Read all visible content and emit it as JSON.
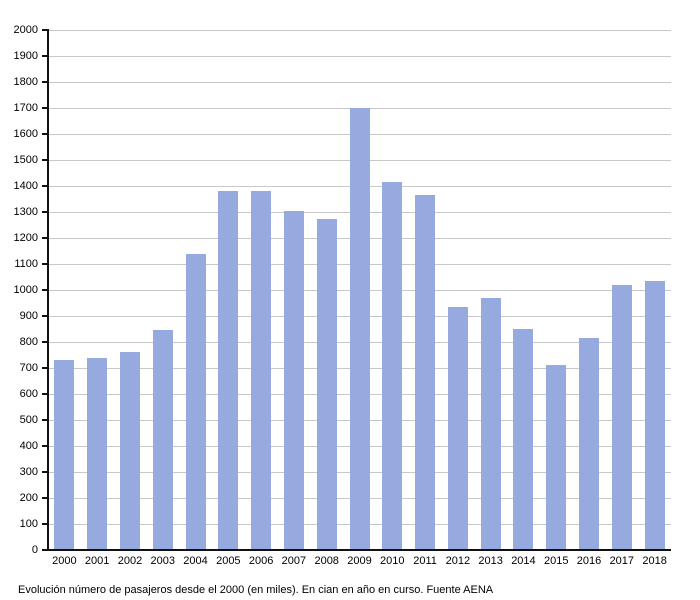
{
  "chart_data": {
    "type": "bar",
    "title": "",
    "xlabel": "",
    "ylabel": "",
    "categories": [
      "2000",
      "2001",
      "2002",
      "2003",
      "2004",
      "2005",
      "2006",
      "2007",
      "2008",
      "2009",
      "2010",
      "2011",
      "2012",
      "2013",
      "2014",
      "2015",
      "2016",
      "2017",
      "2018"
    ],
    "values": [
      730,
      740,
      760,
      845,
      1140,
      1380,
      1380,
      1305,
      1275,
      1700,
      1415,
      1365,
      935,
      970,
      850,
      710,
      815,
      1020,
      1035
    ],
    "ylim": [
      0,
      2000
    ],
    "ytick_step": 100,
    "grid": "on",
    "legend_position": "none",
    "bar_color": "#97aadf",
    "grid_color": "#c8c8c8",
    "axis_color": "#111111",
    "caption": "Evolución número de pasajeros desde el 2000 (en miles). En cian en año en curso. Fuente AENA"
  }
}
